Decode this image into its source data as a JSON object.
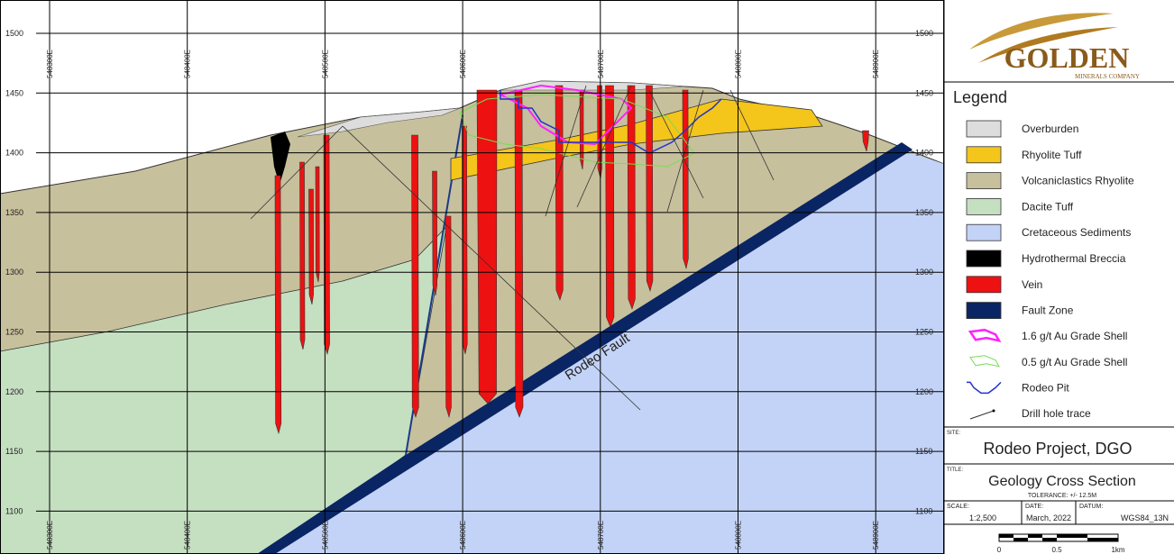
{
  "axes": {
    "left": [
      "1500",
      "1450",
      "1400",
      "1350",
      "1300",
      "1250",
      "1200",
      "1150",
      "1100"
    ],
    "right": [
      "1500",
      "1450",
      "1400",
      "1350",
      "1300",
      "1250",
      "1200",
      "1150",
      "1100"
    ],
    "top": [
      "548300E",
      "548400E",
      "548500E",
      "548600E",
      "548700E",
      "548800E",
      "548900E"
    ],
    "bottom": [
      "548300E",
      "548400E",
      "548500E",
      "548600E",
      "548700E",
      "548800E",
      "548900E"
    ]
  },
  "annotations": {
    "fault": "Rodeo Fault"
  },
  "logo": {
    "name": "GOLDEN",
    "sub": "MINERALS COMPANY"
  },
  "legend": {
    "title": "Legend",
    "items": [
      "Overburden",
      "Rhyolite Tuff",
      "Volcaniclastics Rhyolite",
      "Dacite Tuff",
      "Cretaceous Sediments",
      "Hydrothermal Breccia",
      "Vein",
      "Fault Zone",
      "1.6 g/t Au Grade Shell",
      "0.5 g/t Au Grade Shell",
      "Rodeo Pit",
      "Drill hole trace"
    ]
  },
  "title_block": {
    "site_label": "SITE:",
    "site": "Rodeo Project, DGO",
    "title_label": "TITLE:",
    "title": "Geology Cross Section",
    "tolerance": "TOLERANCE:  +/- 12.5M",
    "scale_label": "SCALE:",
    "scale": "1:2,500",
    "date_label": "DATE:",
    "date": "March, 2022",
    "datum_label": "DATUM:",
    "datum": "WGS84_13N",
    "bar_labels": [
      "0",
      "0.5",
      "1km"
    ]
  }
}
